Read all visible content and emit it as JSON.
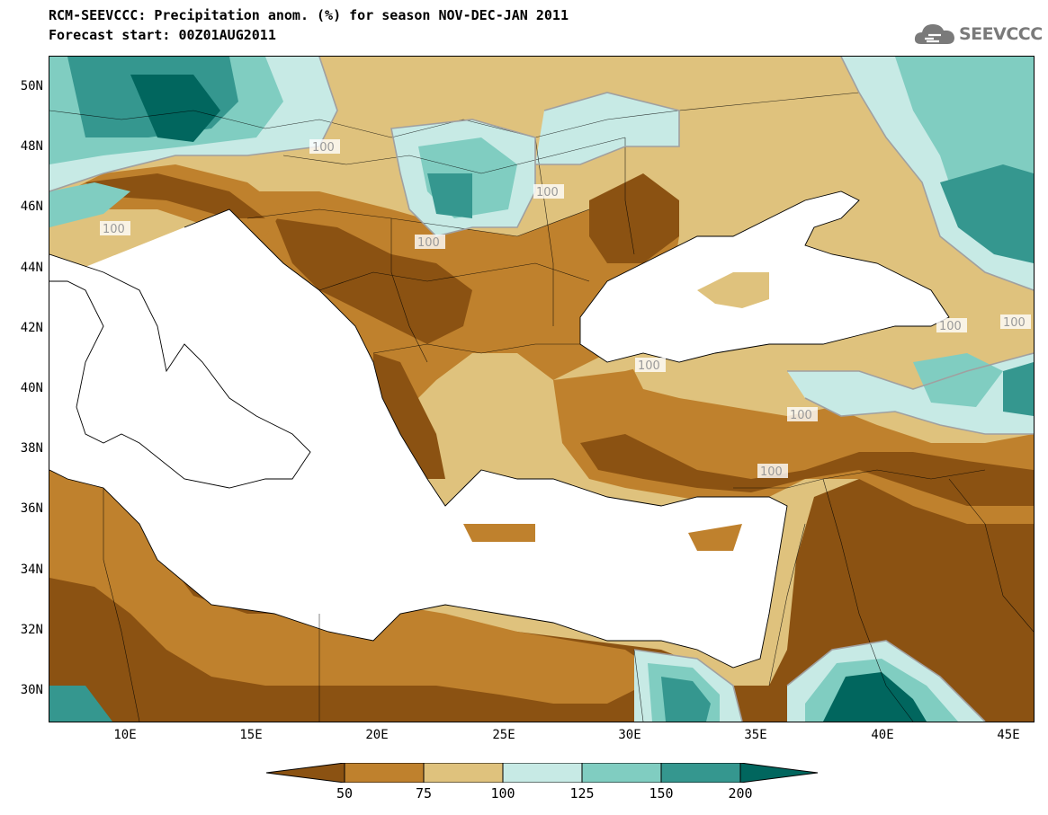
{
  "title": {
    "line1": "RCM-SEEVCCC: Precipitation anom. (%) for season NOV-DEC-JAN 2011",
    "line2": "Forecast start: 00Z01AUG2011"
  },
  "logo": {
    "text": "SEEVCCC",
    "icon": "cloud-icon"
  },
  "map": {
    "lon_range": [
      7,
      46
    ],
    "lat_range": [
      29,
      51
    ],
    "lat_ticks": [
      "50N",
      "48N",
      "46N",
      "44N",
      "42N",
      "40N",
      "38N",
      "36N",
      "34N",
      "32N",
      "30N"
    ],
    "lon_ticks": [
      "10E",
      "15E",
      "20E",
      "25E",
      "30E",
      "35E",
      "40E",
      "45E"
    ],
    "contour_labels": [
      "100",
      "100",
      "100",
      "100",
      "100",
      "100",
      "100",
      "100",
      "100",
      "100"
    ],
    "colors": {
      "lt50": "#8b5212",
      "50_75": "#bf812d",
      "75_100": "#dfc27d",
      "100_125": "#c7eae5",
      "125_150": "#80cdc1",
      "150_200": "#35978f",
      "gt200": "#01665e",
      "sea": "#ffffff"
    }
  },
  "colorbar": {
    "ticks": [
      "50",
      "75",
      "100",
      "125",
      "150",
      "200"
    ]
  }
}
